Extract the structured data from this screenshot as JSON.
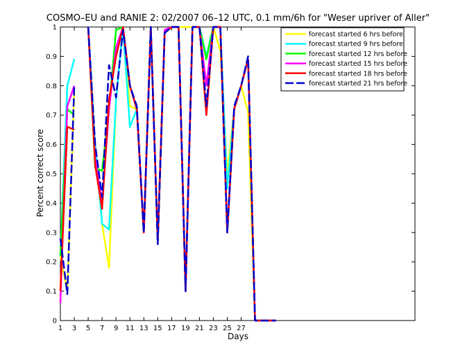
{
  "chart_data": {
    "type": "line",
    "title": "COSMO–EU and RANIE 2: 02/2007 06–12 UTC, 0.1 mm/6h for \"Weser upriver of Aller\"",
    "xlabel": "Days",
    "ylabel": "Percent correct score",
    "xlim": [
      1,
      52
    ],
    "ylim": [
      0,
      1
    ],
    "x_ticks": [
      "1",
      "3",
      "5",
      "7",
      "9",
      "11",
      "13",
      "15",
      "17",
      "19",
      "21",
      "23",
      "25",
      "27"
    ],
    "y_ticks": [
      "0",
      "0.1",
      "0.2",
      "0.3",
      "0.4",
      "0.5",
      "0.6",
      "0.7",
      "0.8",
      "0.9",
      "1"
    ],
    "legend_position": "top-right",
    "series": [
      {
        "name": "forecast started 6 hrs before",
        "color": "#ffff00",
        "dashed": false,
        "x": [
          1,
          2,
          3,
          null,
          5,
          6,
          7,
          8,
          9,
          10,
          11,
          12,
          13,
          14,
          15,
          16,
          17,
          18,
          19,
          20,
          21,
          22,
          23,
          24,
          25,
          26,
          27,
          28,
          29,
          30,
          31,
          32
        ],
        "y": [
          0.22,
          0.1,
          0.78,
          null,
          1,
          0.6,
          0.33,
          0.18,
          0.75,
          1,
          0.73,
          0.72,
          0.3,
          1,
          0.27,
          0.98,
          1,
          1,
          1,
          1,
          1,
          0.9,
          1,
          0.92,
          0.5,
          0.72,
          0.8,
          0.71,
          0,
          0,
          0,
          0
        ]
      },
      {
        "name": "forecast started 9 hrs before",
        "color": "#00ffff",
        "dashed": false,
        "x": [
          1,
          2,
          3,
          null,
          5,
          6,
          7,
          8,
          9,
          10,
          11,
          12,
          13,
          14,
          15,
          16,
          17,
          18,
          19,
          20,
          21,
          22,
          23,
          24,
          25,
          26,
          27,
          28,
          29,
          30,
          31,
          32
        ],
        "y": [
          0.22,
          0.8,
          0.89,
          null,
          1,
          0.6,
          0.33,
          0.31,
          0.75,
          1,
          0.66,
          0.72,
          0.3,
          1,
          0.27,
          0.98,
          1,
          1,
          0.1,
          1,
          1,
          0.9,
          1,
          1,
          0.45,
          0.72,
          0.8,
          0.89,
          0,
          0,
          0,
          0
        ]
      },
      {
        "name": "forecast started 12 hrs before",
        "color": "#00ff00",
        "dashed": false,
        "x": [
          1,
          2,
          3,
          null,
          5,
          6,
          7,
          8,
          9,
          10,
          11,
          12,
          13,
          14,
          15,
          16,
          17,
          18,
          19,
          20,
          21,
          22,
          23,
          24,
          25,
          26,
          27,
          28,
          29,
          30,
          31,
          32
        ],
        "y": [
          0.22,
          0.72,
          0.7,
          null,
          1,
          0.52,
          0.51,
          0.72,
          0.99,
          1,
          0.8,
          0.72,
          0.3,
          1,
          0.27,
          0.98,
          1,
          1,
          0.1,
          1,
          1,
          0.89,
          1,
          1,
          0.3,
          0.72,
          0.8,
          0.89,
          0,
          0,
          0,
          0
        ]
      },
      {
        "name": "forecast started 15 hrs before",
        "color": "#ff00ff",
        "dashed": false,
        "x": [
          1,
          2,
          3,
          null,
          5,
          6,
          7,
          8,
          9,
          10,
          11,
          12,
          13,
          14,
          15,
          16,
          17,
          18,
          19,
          20,
          21,
          22,
          23,
          24,
          25,
          26,
          27,
          28,
          29,
          30,
          31,
          32
        ],
        "y": [
          0.06,
          0.73,
          0.8,
          null,
          1,
          0.55,
          0.4,
          0.72,
          0.93,
          1,
          0.8,
          0.72,
          0.3,
          1,
          0.27,
          0.99,
          1,
          1,
          0.1,
          1,
          1,
          0.8,
          1,
          1,
          0.3,
          0.72,
          0.8,
          0.89,
          0,
          0,
          0,
          0
        ]
      },
      {
        "name": "forecast started 18 hrs before",
        "color": "#ff0000",
        "dashed": false,
        "x": [
          1,
          2,
          3,
          null,
          5,
          6,
          7,
          8,
          9,
          10,
          11,
          12,
          13,
          14,
          15,
          16,
          17,
          18,
          19,
          20,
          21,
          22,
          23,
          24,
          25,
          26,
          27,
          28,
          29,
          30,
          31,
          32
        ],
        "y": [
          0.1,
          0.66,
          0.65,
          null,
          1,
          0.53,
          0.38,
          0.75,
          0.9,
          1,
          0.8,
          0.72,
          0.3,
          1,
          0.27,
          0.98,
          1,
          1,
          0.1,
          1,
          1,
          0.7,
          1,
          1,
          0.3,
          0.72,
          0.8,
          0.89,
          0,
          0,
          0,
          0
        ]
      },
      {
        "name": "forecast started 21 hrs before",
        "color": "#0000cc",
        "dashed": true,
        "x": [
          1,
          2,
          3,
          null,
          5,
          6,
          7,
          8,
          9,
          10,
          11,
          12,
          13,
          14,
          15,
          16,
          17,
          18,
          19,
          20,
          21,
          22,
          23,
          24,
          25,
          26,
          27,
          28,
          29,
          30,
          31,
          32
        ],
        "y": [
          0.28,
          0.09,
          0.8,
          null,
          1,
          0.6,
          0.42,
          0.87,
          0.76,
          0.99,
          0.8,
          0.73,
          0.3,
          1,
          0.26,
          0.98,
          1,
          1,
          0.1,
          1,
          1,
          0.73,
          1,
          1,
          0.3,
          0.73,
          0.8,
          0.9,
          0,
          0,
          0,
          0
        ]
      }
    ]
  }
}
